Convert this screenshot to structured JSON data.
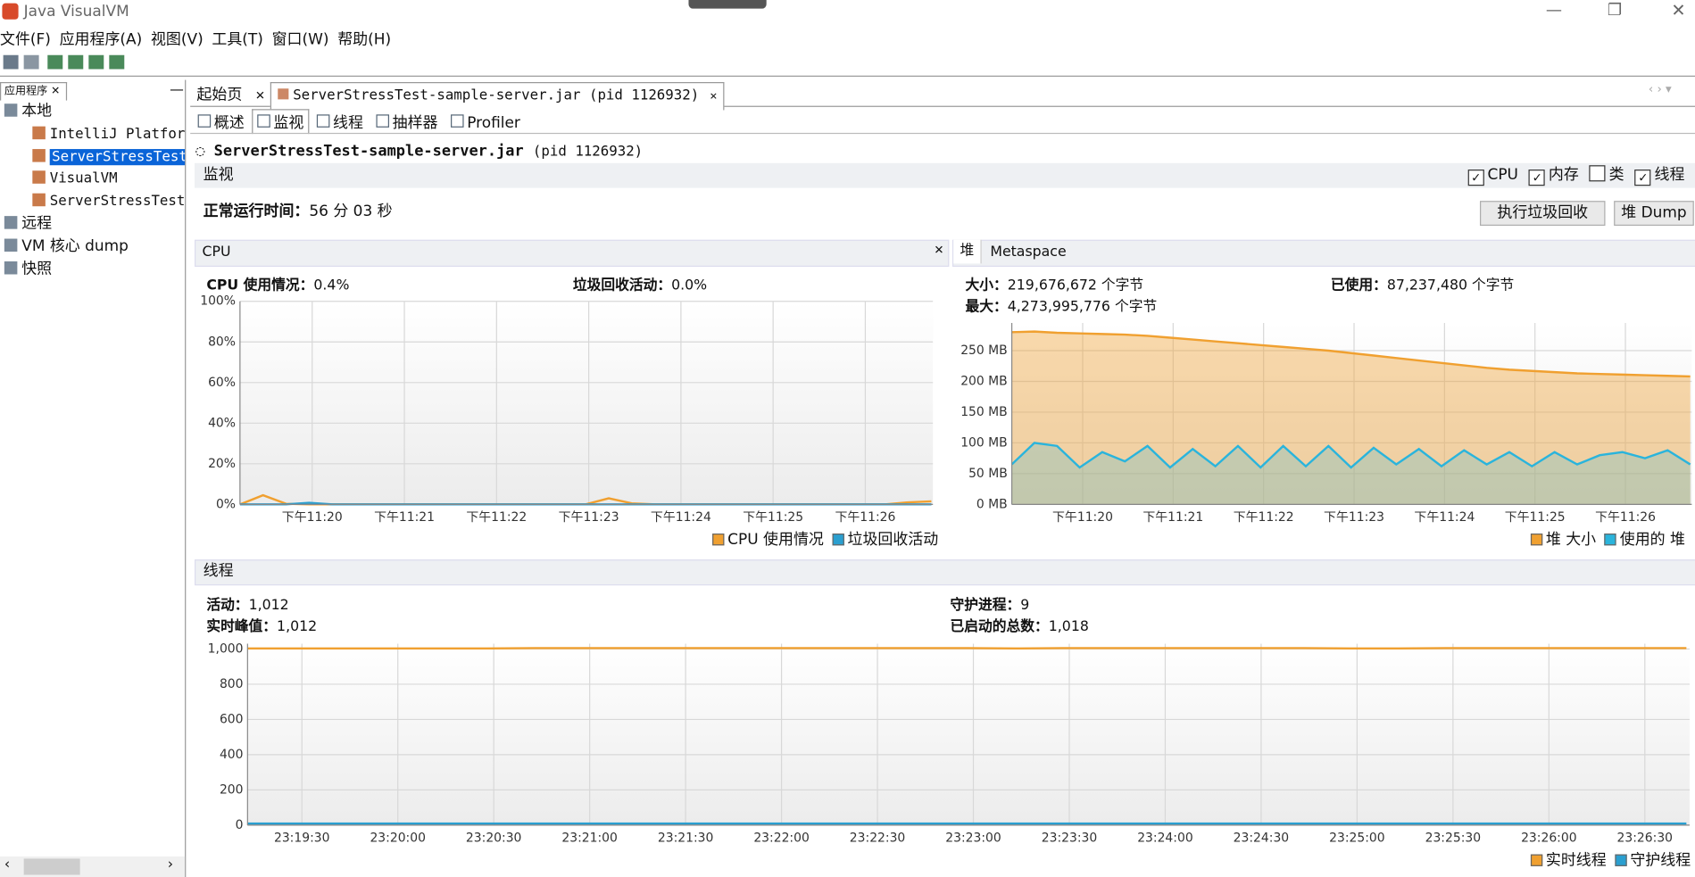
{
  "window": {
    "title": "Java VisualVM"
  },
  "menu": [
    "文件(F)",
    "应用程序(A)",
    "视图(V)",
    "工具(T)",
    "窗口(W)",
    "帮助(H)"
  ],
  "sidebar": {
    "tab": "应用程序",
    "tree": [
      "本地",
      "IntelliJ Platfor",
      "ServerStressTest-",
      "VisualVM",
      "ServerStressTest-",
      "远程",
      "VM 核心 dump",
      "快照"
    ]
  },
  "tabs": [
    "起始页",
    "ServerStressTest-sample-server.jar (pid 1126932)"
  ],
  "subtabs": [
    "概述",
    "监视",
    "线程",
    "抽样器",
    "Profiler"
  ],
  "header": {
    "app": "ServerStressTest-sample-server.jar",
    "pid": "(pid 1126932)"
  },
  "monitor": {
    "title": "监视",
    "checks": [
      "CPU",
      "内存",
      "类",
      "线程"
    ],
    "checked": [
      true,
      true,
      false,
      true
    ],
    "uptime_label": "正常运行时间：",
    "uptime": "56 分 03 秒",
    "buttons": [
      "执行垃圾回收",
      "堆 Dump"
    ]
  },
  "cpu": {
    "title": "CPU",
    "stats": [
      {
        "label": "CPU 使用情况：",
        "value": "0.4%"
      },
      {
        "label": "垃圾回收活动：",
        "value": "0.0%"
      }
    ],
    "chart": {
      "type": "line",
      "x": [
        0,
        15,
        30,
        45,
        60,
        75,
        90,
        105,
        120,
        135,
        150,
        165,
        180,
        195,
        210,
        225,
        240,
        255,
        270,
        285,
        300,
        315,
        330,
        345,
        360,
        375,
        390,
        405,
        420,
        435,
        450
      ],
      "xlim": [
        0,
        451
      ],
      "xticks": [
        {
          "value": 47,
          "label": "下午11:20"
        },
        {
          "value": 107,
          "label": "下午11:21"
        },
        {
          "value": 167,
          "label": "下午11:22"
        },
        {
          "value": 227,
          "label": "下午11:23"
        },
        {
          "value": 287,
          "label": "下午11:24"
        },
        {
          "value": 347,
          "label": "下午11:25"
        },
        {
          "value": 407,
          "label": "下午11:26"
        }
      ],
      "ylim": [
        0,
        100
      ],
      "yticks": [
        {
          "value": 0,
          "label": "0%"
        },
        {
          "value": 20,
          "label": "20%"
        },
        {
          "value": 40,
          "label": "40%"
        },
        {
          "value": 60,
          "label": "60%"
        },
        {
          "value": 80,
          "label": "80%"
        },
        {
          "value": 100,
          "label": "100%"
        }
      ],
      "grid": true,
      "series": [
        {
          "name": "CPU 使用情况",
          "color": "#f0a030",
          "values": [
            0,
            4.5,
            0.3,
            0,
            0,
            0,
            0,
            0,
            0,
            0,
            0,
            0,
            0,
            0,
            0,
            0,
            3,
            0.5,
            0,
            0,
            0,
            0,
            0,
            0,
            0,
            0,
            0,
            0,
            0,
            1,
            1.5
          ]
        },
        {
          "name": "垃圾回收活动",
          "color": "#2a9fd0",
          "values": [
            0,
            0,
            0,
            0.8,
            0,
            0,
            0,
            0,
            0,
            0,
            0,
            0,
            0,
            0,
            0,
            0,
            0,
            0,
            0,
            0,
            0,
            0,
            0,
            0,
            0,
            0,
            0,
            0,
            0,
            0,
            0
          ]
        }
      ]
    }
  },
  "heap": {
    "tabs": [
      "堆",
      "Metaspace"
    ],
    "stats": [
      {
        "label": "大小：",
        "value": "219,676,672 个字节"
      },
      {
        "label": "已使用：",
        "value": "87,237,480 个字节"
      },
      {
        "label": "最大：",
        "value": "4,273,995,776 个字节"
      }
    ],
    "chart": {
      "type": "area",
      "x": [
        0,
        15,
        30,
        45,
        60,
        75,
        90,
        105,
        120,
        135,
        150,
        165,
        180,
        195,
        210,
        225,
        240,
        255,
        270,
        285,
        300,
        315,
        330,
        345,
        360,
        375,
        390,
        405,
        420,
        435,
        450
      ],
      "xlim": [
        0,
        451
      ],
      "xticks": [
        {
          "value": 47,
          "label": "下午11:20"
        },
        {
          "value": 107,
          "label": "下午11:21"
        },
        {
          "value": 167,
          "label": "下午11:22"
        },
        {
          "value": 227,
          "label": "下午11:23"
        },
        {
          "value": 287,
          "label": "下午11:24"
        },
        {
          "value": 347,
          "label": "下午11:25"
        },
        {
          "value": 407,
          "label": "下午11:26"
        }
      ],
      "ylim": [
        0,
        295
      ],
      "yticks": [
        {
          "value": 0,
          "label": "0 MB"
        },
        {
          "value": 50,
          "label": "50 MB"
        },
        {
          "value": 100,
          "label": "100 MB"
        },
        {
          "value": 150,
          "label": "150 MB"
        },
        {
          "value": 200,
          "label": "200 MB"
        },
        {
          "value": 250,
          "label": "250 MB"
        }
      ],
      "grid": true,
      "series": [
        {
          "name": "堆 大小",
          "color": "#f0a030",
          "values": [
            280,
            281,
            279,
            278,
            277,
            276,
            274,
            271,
            268,
            265,
            262,
            259,
            256,
            253,
            250,
            246,
            242,
            238,
            234,
            230,
            226,
            222,
            219,
            217,
            215,
            213,
            212,
            211,
            210,
            209,
            208
          ]
        },
        {
          "name": "使用的 堆",
          "color": "#2ab4dc",
          "values": [
            65,
            100,
            95,
            60,
            85,
            70,
            95,
            60,
            90,
            62,
            95,
            60,
            95,
            62,
            95,
            60,
            92,
            65,
            90,
            62,
            88,
            65,
            85,
            62,
            85,
            65,
            80,
            85,
            75,
            88,
            65
          ]
        }
      ]
    }
  },
  "threads": {
    "title": "线程",
    "stats": [
      {
        "label": "活动：",
        "value": "1,012"
      },
      {
        "label": "守护进程：",
        "value": "9"
      },
      {
        "label": "实时峰值：",
        "value": "1,012"
      },
      {
        "label": "已启动的总数：",
        "value": "1,018"
      }
    ],
    "chart": {
      "type": "line",
      "x": [
        0,
        15,
        30,
        45,
        60,
        75,
        90,
        105,
        120,
        135,
        150,
        165,
        180,
        195,
        210,
        225,
        240,
        255,
        270,
        285,
        300,
        315,
        330,
        345,
        360,
        375,
        390,
        405,
        420,
        435,
        450
      ],
      "xlim": [
        0,
        451
      ],
      "xticks": [
        {
          "value": 17,
          "label": "23:19:30"
        },
        {
          "value": 47,
          "label": "23:20:00"
        },
        {
          "value": 77,
          "label": "23:20:30"
        },
        {
          "value": 107,
          "label": "23:21:00"
        },
        {
          "value": 137,
          "label": "23:21:30"
        },
        {
          "value": 167,
          "label": "23:22:00"
        },
        {
          "value": 197,
          "label": "23:22:30"
        },
        {
          "value": 227,
          "label": "23:23:00"
        },
        {
          "value": 257,
          "label": "23:23:30"
        },
        {
          "value": 287,
          "label": "23:24:00"
        },
        {
          "value": 317,
          "label": "23:24:30"
        },
        {
          "value": 347,
          "label": "23:25:00"
        },
        {
          "value": 377,
          "label": "23:25:30"
        },
        {
          "value": 407,
          "label": "23:26:00"
        },
        {
          "value": 437,
          "label": "23:26:30"
        }
      ],
      "ylim": [
        0,
        1030
      ],
      "yticks": [
        0,
        200,
        400,
        600,
        800,
        {
          "value": 1000,
          "label": "1,000"
        }
      ],
      "grid": true,
      "series": [
        {
          "name": "实时线程",
          "color": "#f0a030",
          "values": [
            1003,
            1003,
            1003,
            1003,
            1003,
            1003,
            1005,
            1005,
            1005,
            1005,
            1005,
            1005,
            1005,
            1005,
            1005,
            1005,
            1003,
            1005,
            1005,
            1005,
            1005,
            1005,
            1005,
            1003,
            1003,
            1005,
            1005,
            1005,
            1005,
            1005,
            1005
          ]
        },
        {
          "name": "守护线程",
          "color": "#2a9fd0",
          "values": [
            9,
            9,
            9,
            9,
            9,
            9,
            9,
            9,
            9,
            9,
            9,
            9,
            9,
            9,
            9,
            9,
            9,
            9,
            9,
            9,
            9,
            9,
            9,
            9,
            9,
            9,
            9,
            9,
            9,
            9,
            9
          ]
        }
      ]
    }
  }
}
